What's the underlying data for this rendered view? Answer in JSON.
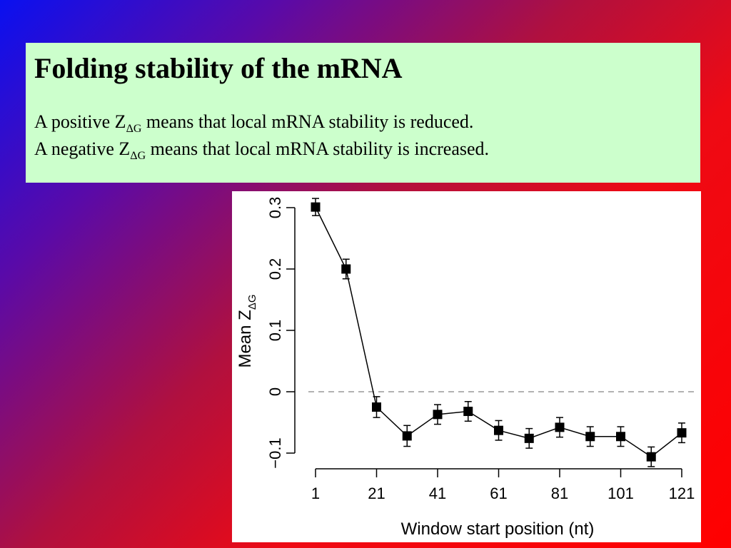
{
  "slide": {
    "title": "Folding stability of the mRNA",
    "lines": [
      {
        "pre": "A positive Z",
        "sub": "ΔG",
        "post": " means that local mRNA stability is reduced."
      },
      {
        "pre": "A negative Z",
        "sub": "ΔG",
        "post": " means that local mRNA stability is increased."
      }
    ]
  },
  "chart_data": {
    "type": "line",
    "xlabel": "Window start position (nt)",
    "ylabel_main": "Mean Z",
    "ylabel_sub": "ΔG",
    "x": [
      1,
      11,
      21,
      31,
      41,
      51,
      61,
      71,
      81,
      91,
      101,
      111,
      121
    ],
    "y": [
      0.301,
      0.2,
      -0.025,
      -0.072,
      -0.037,
      -0.032,
      -0.063,
      -0.076,
      -0.058,
      -0.073,
      -0.073,
      -0.106,
      -0.067
    ],
    "error": [
      0.014,
      0.016,
      0.017,
      0.017,
      0.016,
      0.016,
      0.016,
      0.016,
      0.016,
      0.016,
      0.016,
      0.016,
      0.016
    ],
    "xlim": [
      1,
      121
    ],
    "ylim": [
      -0.1,
      0.3
    ],
    "xticks": [
      1,
      21,
      41,
      61,
      81,
      101,
      121
    ],
    "yticks": [
      -0.1,
      0,
      0.1,
      0.2,
      0.3
    ],
    "ytick_labels": [
      "−0.1",
      "0",
      "0.1",
      "0.2",
      "0.3"
    ],
    "reference_line": {
      "y": 0,
      "style": "dashed",
      "color": "#999999"
    },
    "marker": "square",
    "color": "#000000",
    "grid": false
  }
}
